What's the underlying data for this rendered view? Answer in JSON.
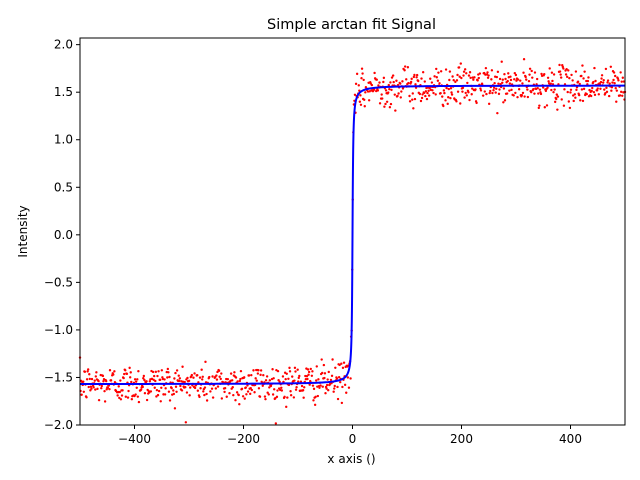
{
  "chart_data": {
    "type": "scatter",
    "title": "Simple arctan fit Signal",
    "xlabel": "x axis ()",
    "ylabel": "Intensity",
    "xlim": [
      -500,
      500
    ],
    "ylim": [
      -2.0,
      2.07
    ],
    "xticks": [
      -400,
      -200,
      0,
      200,
      400
    ],
    "xtick_labels": [
      "−400",
      "−200",
      "0",
      "200",
      "400"
    ],
    "yticks": [
      -2.0,
      -1.5,
      -1.0,
      -0.5,
      0.0,
      0.5,
      1.0,
      1.5,
      2.0
    ],
    "ytick_labels": [
      "−2.0",
      "−1.5",
      "−1.0",
      "−0.5",
      "0.0",
      "0.5",
      "1.0",
      "1.5",
      "2.0"
    ],
    "grid": false,
    "series": [
      {
        "kind": "scatter",
        "color": "#ff0000",
        "model": "arctan(x) + gaussian noise",
        "noise_sigma": 0.1,
        "x_start": -500,
        "x_end": 500,
        "n_points": 1000
      },
      {
        "kind": "line",
        "color": "#0000ff",
        "model": "arctan(x)",
        "lower_asymptote": -1.5708,
        "upper_asymptote": 1.5708
      }
    ]
  }
}
